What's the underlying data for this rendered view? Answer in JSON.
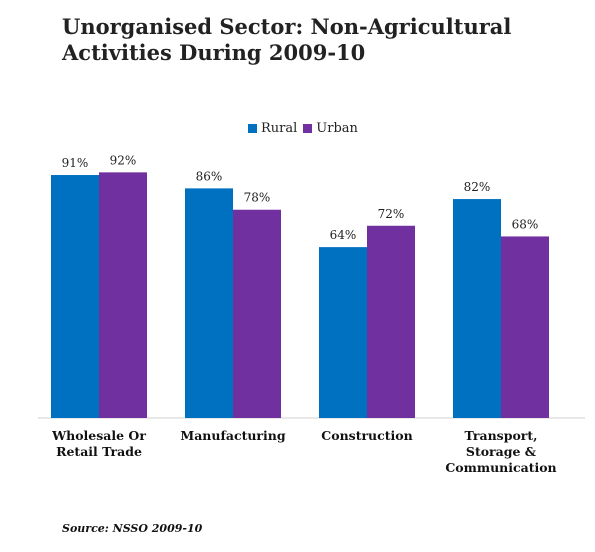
{
  "chart_data": {
    "type": "bar",
    "title": "Unorganised Sector: Non-Agricultural\nActivities During 2009-10",
    "categories": [
      "Wholesale Or\nRetail Trade",
      "Manufacturing",
      "Construction",
      "Transport,\nStorage &\nCommunication"
    ],
    "series": [
      {
        "name": "Rural",
        "values": [
          91,
          86,
          64,
          82
        ],
        "labels": [
          "91%",
          "86%",
          "64%",
          "82%"
        ],
        "color": "#0070c0"
      },
      {
        "name": "Urban",
        "values": [
          92,
          78,
          72,
          68
        ],
        "labels": [
          "92%",
          "78%",
          "72%",
          "68%"
        ],
        "color": "#7030a0"
      }
    ],
    "ylim": [
      0,
      100
    ],
    "grid": false,
    "legend": "top-center",
    "source": "Source: NSSO 2009-10"
  }
}
